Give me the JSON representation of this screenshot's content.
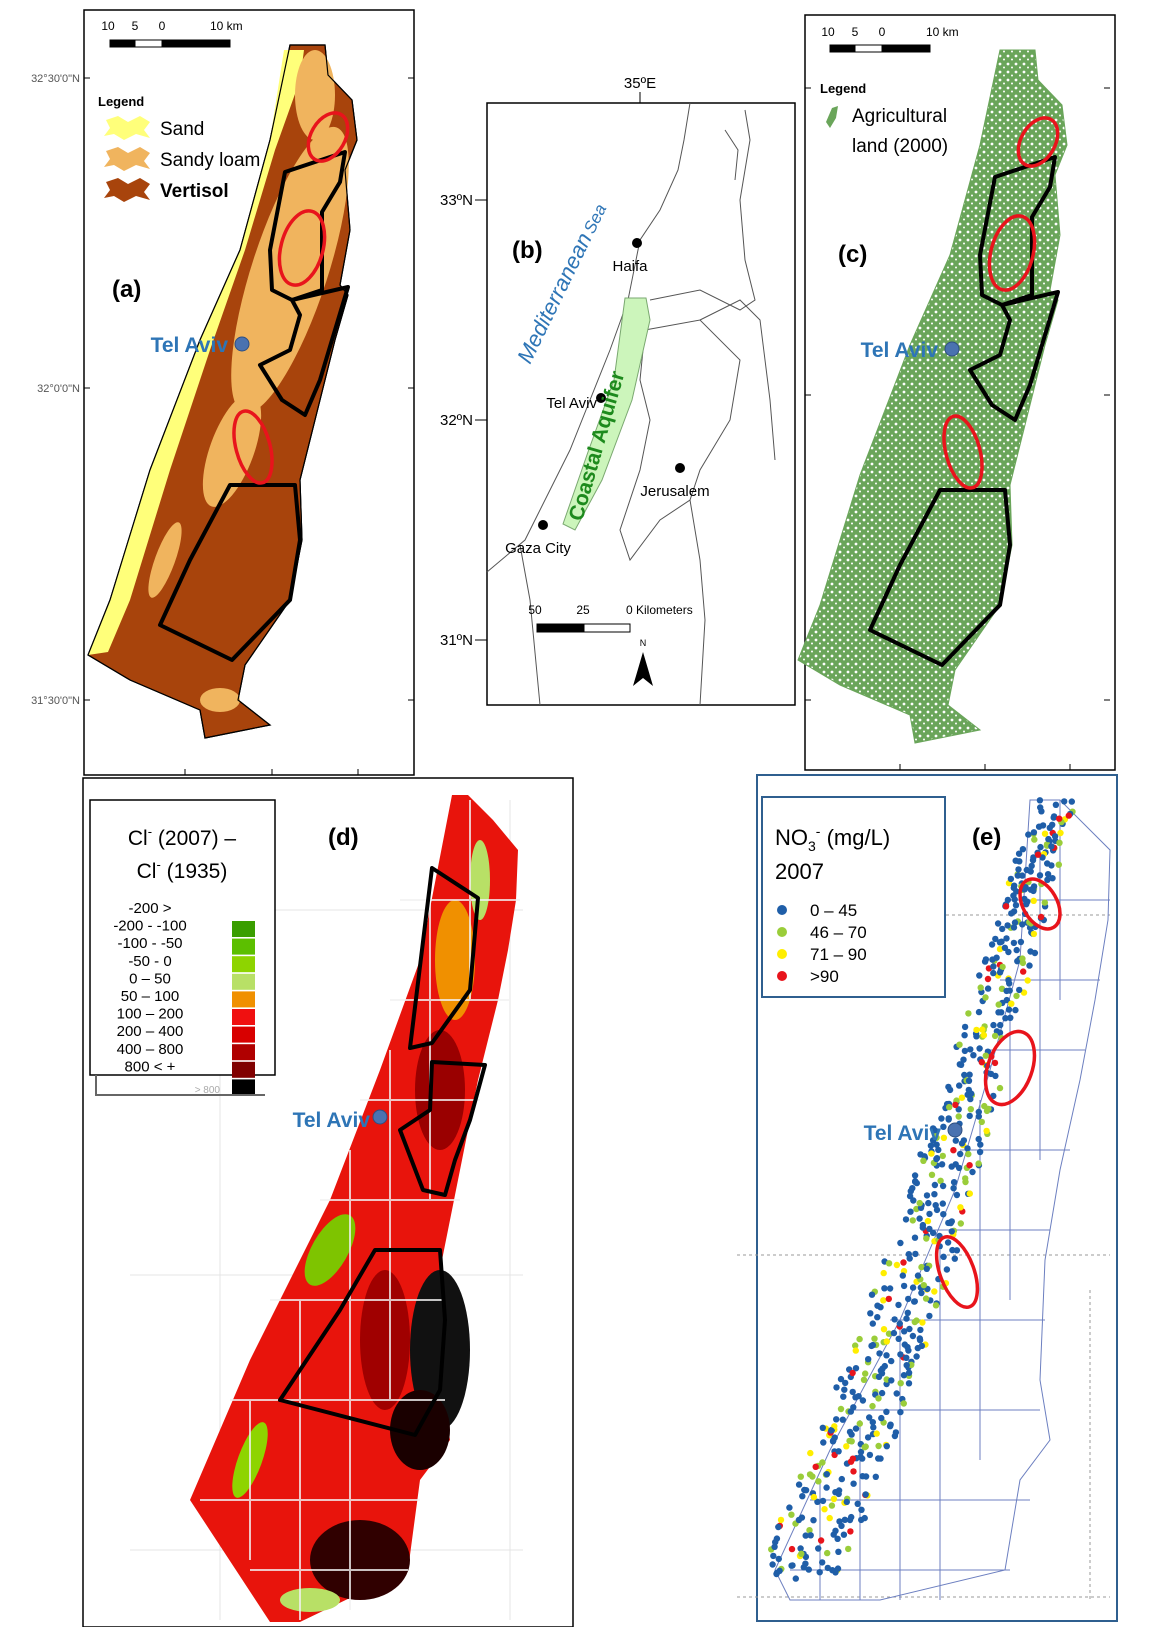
{
  "panel_a": {
    "label": "(a)",
    "scale": [
      "10",
      "5",
      "0",
      "10 km"
    ],
    "latitudes": [
      "32°30'0\"N",
      "32°0'0\"N",
      "31°30'0\"N"
    ],
    "legend": {
      "title": "Legend",
      "items": [
        {
          "name": "Sand",
          "color": "#ffff7a"
        },
        {
          "name": "Sandy loam",
          "color": "#f0b45e"
        },
        {
          "name": "Vertisol",
          "color": "#a8440c"
        }
      ]
    },
    "city": "Tel Aviv"
  },
  "panel_b": {
    "label": "(b)",
    "longitude": "35ºE",
    "latitudes": [
      "33ºN",
      "32ºN",
      "31ºN"
    ],
    "sea": [
      "Mediterranean",
      "Sea"
    ],
    "aquifer": "Coastal Aquifer",
    "cities": [
      "Haifa",
      "Tel Aviv",
      "Jerusalem",
      "Gaza City"
    ],
    "scale": [
      "50",
      "25",
      "0 Kilometers"
    ],
    "north": "N"
  },
  "panel_c": {
    "label": "(c)",
    "scale": [
      "10",
      "5",
      "0",
      "10 km"
    ],
    "legend": {
      "title": "Legend",
      "item": [
        "Agricultural",
        "land (2000)"
      ],
      "color": "#6aa55a"
    },
    "city": "Tel Aviv"
  },
  "panel_d": {
    "label": "(d)",
    "city": "Tel Aviv",
    "legend": {
      "title": [
        {
          "text": "Cl",
          "sup": "-",
          "after": " (2007) –"
        },
        {
          "text": "Cl",
          "sup": "-",
          "after": " (1935)"
        }
      ],
      "items": [
        {
          "name": "-200 >",
          "color": "#3a9e00"
        },
        {
          "name": "-200 - -100",
          "color": "#5cbf00"
        },
        {
          "name": "-100 - -50",
          "color": "#8ed400"
        },
        {
          "name": "-50 - 0",
          "color": "#b8e066"
        },
        {
          "name": "0 – 50",
          "color": "#f09000"
        },
        {
          "name": "50 – 100",
          "color": "#f01010"
        },
        {
          "name": "100 – 200",
          "color": "#d80000"
        },
        {
          "name": "200 – 400",
          "color": "#b00000"
        },
        {
          "name": "400 – 800",
          "color": "#800000"
        },
        {
          "name": "800 < +",
          "color": "#000000"
        }
      ],
      "faint": "> 800"
    }
  },
  "panel_e": {
    "label": "(e)",
    "city": "Tel Aviv",
    "legend": {
      "title": {
        "text": "NO",
        "sub": "3",
        "sup": "-",
        "after": " (mg/L)",
        "year": "2007"
      },
      "items": [
        {
          "name": "0 – 45",
          "color": "#1f5ea8"
        },
        {
          "name": "46 – 70",
          "color": "#9acd3a"
        },
        {
          "name": "71 – 90",
          "color": "#ffee00"
        },
        {
          "name": ">90",
          "color": "#e8141c"
        }
      ]
    }
  }
}
